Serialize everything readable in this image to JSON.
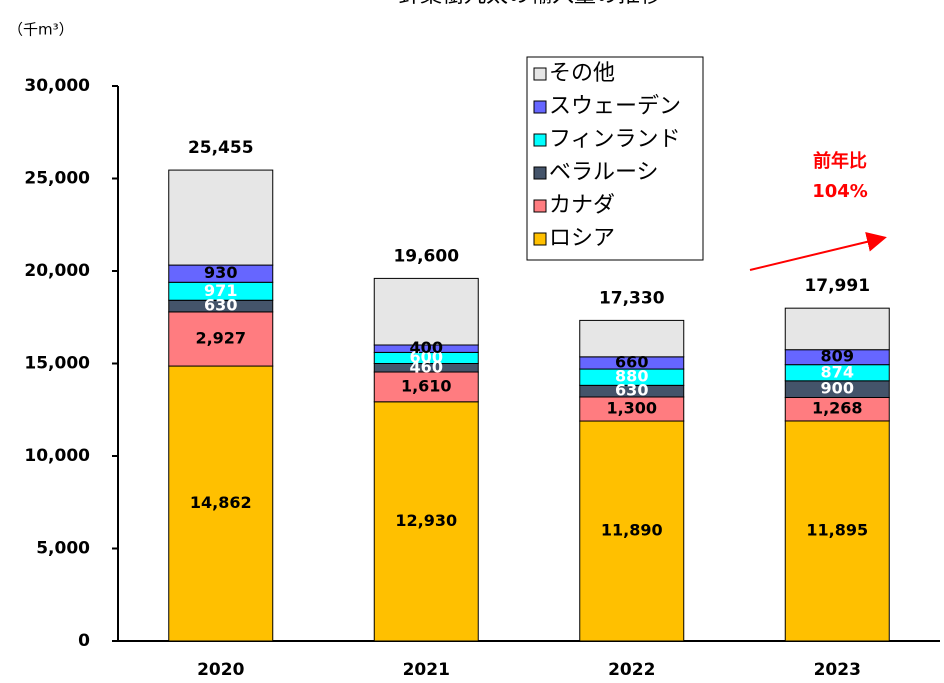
{
  "chart_data": {
    "type": "stacked_bar",
    "title": "針葉樹丸太の輸入量の推移",
    "unit_label": "（千m³）",
    "categories": [
      "2020",
      "2021",
      "2022",
      "2023"
    ],
    "series": [
      {
        "name": "ロシア",
        "color": "#ffc000",
        "values": [
          14862,
          12930,
          11890,
          11895
        ],
        "value_labels": [
          "14,862",
          "12,930",
          "11,890",
          "11,895"
        ]
      },
      {
        "name": "カナダ",
        "color": "#ff7c80",
        "values": [
          2927,
          1610,
          1300,
          1268
        ],
        "value_labels": [
          "2,927",
          "1,610",
          "1,300",
          "1,268"
        ]
      },
      {
        "name": "ベラルーシ",
        "color": "#44546a",
        "values": [
          630,
          460,
          630,
          900
        ]
      },
      {
        "name": "フィンランド",
        "color": "#00ffff",
        "values": [
          971,
          600,
          880,
          874
        ]
      },
      {
        "name": "スウェーデン",
        "color": "#6666ff",
        "values": [
          930,
          400,
          660,
          809
        ]
      },
      {
        "name": "その他",
        "color": "#e6e6e6",
        "values": [
          5135,
          3600,
          1970,
          2245
        ]
      }
    ],
    "totals": [
      25455,
      19600,
      17330,
      17991
    ],
    "total_labels": [
      "25,455",
      "19,600",
      "17,330",
      "17,991"
    ],
    "ylim": [
      0,
      30000
    ],
    "yticks": [
      0,
      {
        "value": 5000,
        "label": "5,000"
      },
      {
        "value": 10000,
        "label": "10,000"
      },
      {
        "value": 15000,
        "label": "15,000"
      },
      {
        "value": 20000,
        "label": "20,000"
      },
      {
        "value": 25000,
        "label": "25,000"
      },
      {
        "value": 30000,
        "label": "30,000"
      }
    ],
    "annotation": [
      "前年比",
      "104%"
    ]
  }
}
